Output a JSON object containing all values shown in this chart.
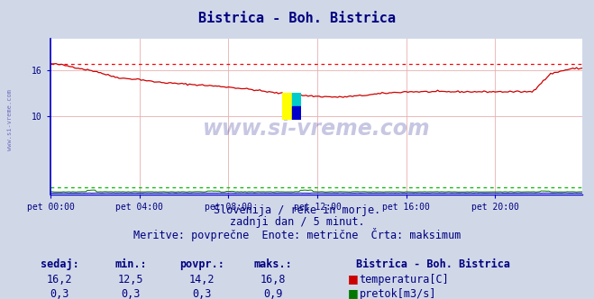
{
  "title": "Bistrica - Boh. Bistrica",
  "title_color": "#000080",
  "title_fontsize": 11,
  "bg_color": "#d0d8e8",
  "plot_bg_color": "#ffffff",
  "grid_color": "#e8b0b0",
  "xlabel_color": "#000080",
  "ylabel_color": "#000080",
  "watermark_text": "www.si-vreme.com",
  "watermark_color": "#000080",
  "x_tick_labels": [
    "pet 00:00",
    "pet 04:00",
    "pet 08:00",
    "pet 12:00",
    "pet 16:00",
    "pet 20:00"
  ],
  "x_tick_positions": [
    0,
    48,
    96,
    144,
    192,
    240
  ],
  "ylim": [
    0,
    20
  ],
  "xlim": [
    0,
    287
  ],
  "temp_max_line_y": 16.8,
  "temp_max_line_color": "#ff0000",
  "pretok_max_line_y": 0.9,
  "pretok_max_line_color": "#00bb00",
  "temp_line_color": "#cc0000",
  "pretok_line_color": "#007700",
  "height_line_color": "#0000bb",
  "footer_lines": [
    "Slovenija / reke in morje.",
    "zadnji dan / 5 minut.",
    "Meritve: povprečne  Enote: metrične  Črta: maksimum"
  ],
  "footer_color": "#000080",
  "footer_fontsize": 8.5,
  "stats_label_color": "#000080",
  "stats_fontsize": 8.5,
  "legend_title": "Bistrica - Boh. Bistrica",
  "legend_items": [
    {
      "label": "temperatura[C]",
      "color": "#cc0000"
    },
    {
      "label": "pretok[m3/s]",
      "color": "#007700"
    }
  ],
  "stats_headers": [
    "sedaj:",
    "min.:",
    "povpr.:",
    "maks.:"
  ],
  "stats_temp": [
    "16,2",
    "12,5",
    "14,2",
    "16,8"
  ],
  "stats_pretok": [
    "0,3",
    "0,3",
    "0,3",
    "0,9"
  ],
  "left_label": "www.si-vreme.com",
  "logo_colors": [
    "#FFFF00",
    "#00CCCC",
    "#0000CC"
  ]
}
